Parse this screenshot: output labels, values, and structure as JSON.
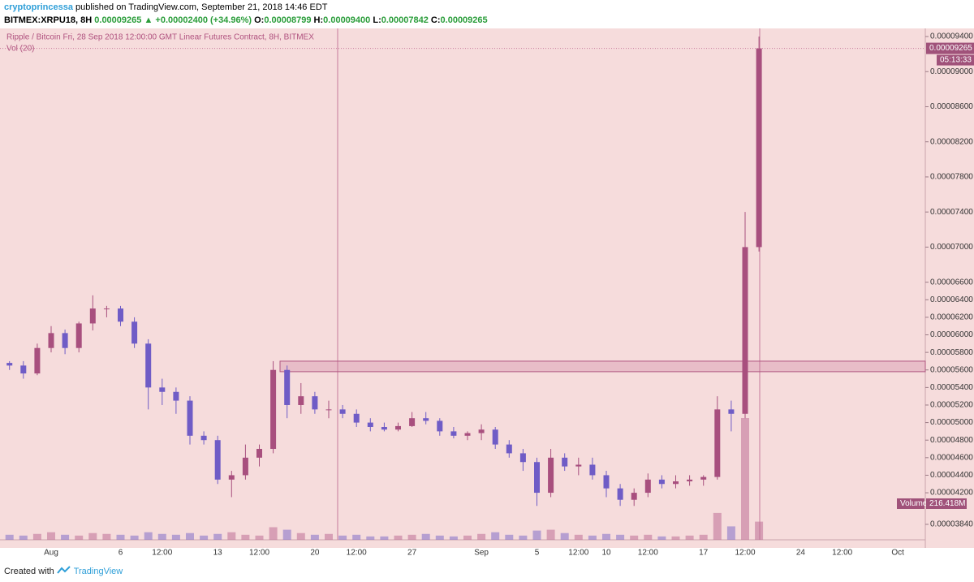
{
  "header": {
    "author": "cryptoprincessa",
    "published": "published on TradingView.com, September 21, 2018 14:46 EDT",
    "symbol": "BITMEX:XRPU18, 8H",
    "price": "0.00009265",
    "change": "▲ +0.00002400 (+34.96%)",
    "o_label": "O:",
    "o": "0.00008799",
    "h_label": "H:",
    "h": "0.00009400",
    "l_label": "L:",
    "l": "0.00007842",
    "c_label": "C:",
    "c": "0.00009265"
  },
  "chart_data": {
    "type": "candlestick",
    "legend": "Ripple / Bitcoin Fri, 28 Sep 2018 12:00:00 GMT Linear Futures Contract, 8H, BITMEX",
    "volume_legend": "Vol (20)",
    "categories": [
      null,
      null,
      null,
      "Aug",
      null,
      null,
      null,
      null,
      "6",
      null,
      null,
      "12:00",
      null,
      null,
      null,
      "13",
      null,
      null,
      "12:00",
      null,
      null,
      null,
      "20",
      null,
      null,
      "12:00",
      null,
      null,
      null,
      "27",
      null,
      null,
      null,
      null,
      "Sep",
      null,
      null,
      null,
      "5",
      null,
      null,
      "12:00",
      null,
      "10",
      null,
      null,
      "12:00",
      null,
      null,
      null,
      "17",
      null,
      null,
      "12:00",
      null,
      null,
      null,
      "24",
      null,
      null,
      "12:00",
      null,
      null,
      null,
      "Oct"
    ],
    "open": [
      5.68e-05,
      5.65e-05,
      5.56e-05,
      5.85e-05,
      6.02e-05,
      5.85e-05,
      6.13e-05,
      6.3e-05,
      6.3e-05,
      6.15e-05,
      5.9e-05,
      5.4e-05,
      5.35e-05,
      5.25e-05,
      4.85e-05,
      4.8e-05,
      4.35e-05,
      4.4e-05,
      4.6e-05,
      4.7e-05,
      5.6e-05,
      5.2e-05,
      5.3e-05,
      5.15e-05,
      5.15e-05,
      5.1e-05,
      5e-05,
      4.95e-05,
      4.92e-05,
      4.96e-05,
      5.05e-05,
      5.02e-05,
      4.9e-05,
      4.85e-05,
      4.88e-05,
      4.92e-05,
      4.75e-05,
      4.65e-05,
      4.55e-05,
      4.2e-05,
      4.6e-05,
      4.5e-05,
      4.52e-05,
      4.4e-05,
      4.25e-05,
      4.12e-05,
      4.2e-05,
      4.35e-05,
      4.3e-05,
      4.33e-05,
      4.35e-05,
      4.38e-05,
      5.15e-05,
      5.1e-05,
      7e-05,
      null,
      null,
      null,
      null,
      null,
      null,
      null,
      null,
      null,
      null
    ],
    "high": [
      5.7e-05,
      5.7e-05,
      5.9e-05,
      6.1e-05,
      6.06e-05,
      6.15e-05,
      6.45e-05,
      6.33e-05,
      6.33e-05,
      6.2e-05,
      5.95e-05,
      5.5e-05,
      5.4e-05,
      5.3e-05,
      4.9e-05,
      4.85e-05,
      4.45e-05,
      4.75e-05,
      4.75e-05,
      5.7e-05,
      5.65e-05,
      5.45e-05,
      5.35e-05,
      5.25e-05,
      5.2e-05,
      5.15e-05,
      5.05e-05,
      5e-05,
      5e-05,
      5.12e-05,
      5.12e-05,
      5.05e-05,
      4.95e-05,
      4.9e-05,
      4.98e-05,
      4.95e-05,
      4.8e-05,
      4.7e-05,
      4.6e-05,
      4.7e-05,
      4.65e-05,
      4.6e-05,
      4.6e-05,
      4.45e-05,
      4.3e-05,
      4.25e-05,
      4.42e-05,
      4.4e-05,
      4.4e-05,
      4.4e-05,
      4.4e-05,
      5.3e-05,
      5.25e-05,
      7.4e-05,
      9.4e-05,
      null,
      null,
      null,
      null,
      null,
      null,
      null,
      null,
      null,
      null
    ],
    "low": [
      5.6e-05,
      5.5e-05,
      5.54e-05,
      5.8e-05,
      5.78e-05,
      5.8e-05,
      6.05e-05,
      6.2e-05,
      6.1e-05,
      5.85e-05,
      5.15e-05,
      5.2e-05,
      5.1e-05,
      4.75e-05,
      4.75e-05,
      4.3e-05,
      4.15e-05,
      4.35e-05,
      4.5e-05,
      4.65e-05,
      5.05e-05,
      5.1e-05,
      5.1e-05,
      5.05e-05,
      5.05e-05,
      4.95e-05,
      4.9e-05,
      4.9e-05,
      4.9e-05,
      4.95e-05,
      4.98e-05,
      4.85e-05,
      4.82e-05,
      4.8e-05,
      4.8e-05,
      4.7e-05,
      4.6e-05,
      4.45e-05,
      4.05e-05,
      4.15e-05,
      4.45e-05,
      4.4e-05,
      4.35e-05,
      4.15e-05,
      4.05e-05,
      4.05e-05,
      4.15e-05,
      4.25e-05,
      4.25e-05,
      4.28e-05,
      4.28e-05,
      4.35e-05,
      4.9e-05,
      5.05e-05,
      6.95e-05,
      null,
      null,
      null,
      null,
      null,
      null,
      null,
      null,
      null,
      null
    ],
    "close": [
      5.65e-05,
      5.56e-05,
      5.85e-05,
      6.02e-05,
      5.85e-05,
      6.13e-05,
      6.3e-05,
      6.3e-05,
      6.15e-05,
      5.9e-05,
      5.4e-05,
      5.35e-05,
      5.25e-05,
      4.85e-05,
      4.8e-05,
      4.35e-05,
      4.4e-05,
      4.6e-05,
      4.7e-05,
      5.6e-05,
      5.2e-05,
      5.3e-05,
      5.15e-05,
      5.15e-05,
      5.1e-05,
      5e-05,
      4.95e-05,
      4.92e-05,
      4.96e-05,
      5.05e-05,
      5.02e-05,
      4.9e-05,
      4.85e-05,
      4.88e-05,
      4.92e-05,
      4.75e-05,
      4.65e-05,
      4.55e-05,
      4.2e-05,
      4.6e-05,
      4.5e-05,
      4.52e-05,
      4.4e-05,
      4.25e-05,
      4.12e-05,
      4.2e-05,
      4.35e-05,
      4.3e-05,
      4.33e-05,
      4.35e-05,
      4.38e-05,
      5.15e-05,
      5.1e-05,
      7e-05,
      9.265e-05,
      null,
      null,
      null,
      null,
      null,
      null,
      null,
      null,
      null,
      null
    ],
    "volume": {
      "name": "Volume",
      "last_label": "216.418M",
      "values": [
        60000000.0,
        50000000.0,
        70000000.0,
        90000000.0,
        60000000.0,
        50000000.0,
        80000000.0,
        70000000.0,
        60000000.0,
        50000000.0,
        90000000.0,
        70000000.0,
        60000000.0,
        80000000.0,
        50000000.0,
        70000000.0,
        90000000.0,
        60000000.0,
        50000000.0,
        150000000.0,
        120000000.0,
        80000000.0,
        60000000.0,
        70000000.0,
        50000000.0,
        60000000.0,
        40000000.0,
        40000000.0,
        50000000.0,
        60000000.0,
        70000000.0,
        50000000.0,
        40000000.0,
        50000000.0,
        70000000.0,
        90000000.0,
        60000000.0,
        50000000.0,
        110000000.0,
        120000000.0,
        80000000.0,
        60000000.0,
        50000000.0,
        70000000.0,
        60000000.0,
        50000000.0,
        60000000.0,
        40000000.0,
        40000000.0,
        50000000.0,
        60000000.0,
        320000000.0,
        160000000.0,
        1450000000.0,
        216418000,
        null,
        null,
        null,
        null,
        null,
        null,
        null,
        null,
        null,
        null
      ]
    },
    "up_color": "#a84f7e",
    "down_color": "#6f5cc6",
    "last_price": 9.265e-05,
    "last_price_label": "0.00009265",
    "countdown": "05:13:33",
    "highlight_zone": [
      5.58e-05,
      5.7e-05
    ],
    "ylim": [
      3.664e-05,
      9.4925e-05
    ],
    "yticks": [
      {
        "value": 9.4e-05,
        "label": "0.00009400"
      },
      {
        "value": 9e-05,
        "label": "0.00009000"
      },
      {
        "value": 8.6e-05,
        "label": "0.00008600"
      },
      {
        "value": 8.2e-05,
        "label": "0.00008200"
      },
      {
        "value": 7.8e-05,
        "label": "0.00007800"
      },
      {
        "value": 7.4e-05,
        "label": "0.00007400"
      },
      {
        "value": 7e-05,
        "label": "0.00007000"
      },
      {
        "value": 6.6e-05,
        "label": "0.00006600"
      },
      {
        "value": 6.4e-05,
        "label": "0.00006400"
      },
      {
        "value": 6.2e-05,
        "label": "0.00006200"
      },
      {
        "value": 6e-05,
        "label": "0.00006000"
      },
      {
        "value": 5.8e-05,
        "label": "0.00005800"
      },
      {
        "value": 5.6e-05,
        "label": "0.00005600"
      },
      {
        "value": 5.4e-05,
        "label": "0.00005400"
      },
      {
        "value": 5.2e-05,
        "label": "0.00005200"
      },
      {
        "value": 5e-05,
        "label": "0.00005000"
      },
      {
        "value": 4.8e-05,
        "label": "0.00004800"
      },
      {
        "value": 4.6e-05,
        "label": "0.00004600"
      },
      {
        "value": 4.4e-05,
        "label": "0.00004400"
      },
      {
        "value": 4.2e-05,
        "label": "0.00004200"
      },
      {
        "value": 3.84e-05,
        "label": "0.00003840"
      }
    ],
    "grid": false
  },
  "footer": {
    "created": "Created with",
    "brand": "TradingView"
  }
}
